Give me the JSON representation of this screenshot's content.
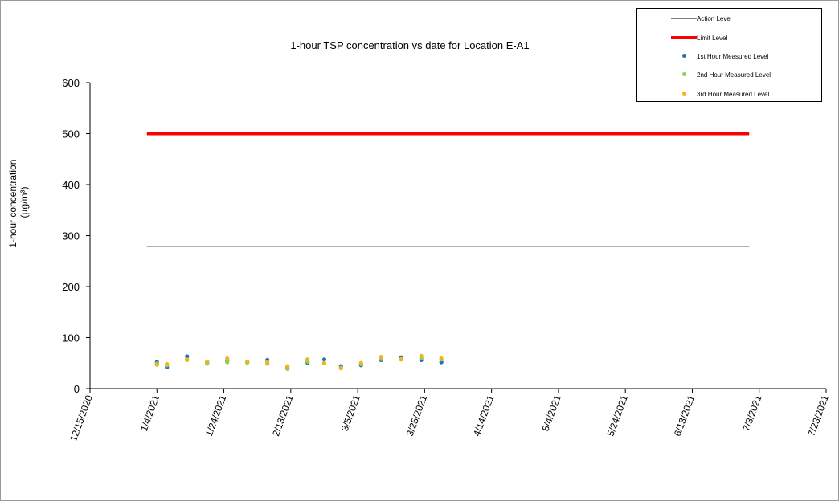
{
  "chart_data": {
    "type": "scatter",
    "title": "1-hour TSP concentration vs date for Location E-A1",
    "ylabel_line1": "1-hour concentration",
    "ylabel_line2": "(µg/m³)",
    "xlabel": "",
    "ylim": [
      0,
      600
    ],
    "yticks": [
      0,
      100,
      200,
      300,
      400,
      500,
      600
    ],
    "xlim": [
      "2020-12-15",
      "2021-07-23"
    ],
    "xticks": [
      "12/15/2020",
      "1/4/2021",
      "1/24/2021",
      "2/13/2021",
      "3/5/2021",
      "3/25/2021",
      "4/14/2021",
      "5/4/2021",
      "5/24/2021",
      "6/13/2021",
      "7/3/2021",
      "7/23/2021"
    ],
    "grid": false,
    "legend_position": "top-right",
    "reference_lines": [
      {
        "name": "Action Level",
        "value": 279,
        "x_start": "2021-01-01",
        "x_end": "2021-06-30",
        "color": "#808080"
      },
      {
        "name": "Limit Level",
        "value": 500,
        "x_start": "2021-01-01",
        "x_end": "2021-06-30",
        "color": "#ff0000"
      }
    ],
    "series": [
      {
        "name": "1st Hour Measured Level",
        "color": "#1f6fb4",
        "points": [
          {
            "x": "2021-01-04",
            "y": 52
          },
          {
            "x": "2021-01-07",
            "y": 42
          },
          {
            "x": "2021-01-13",
            "y": 63
          },
          {
            "x": "2021-01-19",
            "y": 51
          },
          {
            "x": "2021-01-25",
            "y": 55
          },
          {
            "x": "2021-01-31",
            "y": 52
          },
          {
            "x": "2021-02-06",
            "y": 56
          },
          {
            "x": "2021-02-12",
            "y": 41
          },
          {
            "x": "2021-02-18",
            "y": 51
          },
          {
            "x": "2021-02-23",
            "y": 57
          },
          {
            "x": "2021-02-28",
            "y": 44
          },
          {
            "x": "2021-03-06",
            "y": 46
          },
          {
            "x": "2021-03-12",
            "y": 56
          },
          {
            "x": "2021-03-18",
            "y": 61
          },
          {
            "x": "2021-03-24",
            "y": 56
          },
          {
            "x": "2021-03-30",
            "y": 52
          }
        ]
      },
      {
        "name": "2nd Hour Measured Level",
        "color": "#8ccf5a",
        "points": [
          {
            "x": "2021-01-04",
            "y": 49
          },
          {
            "x": "2021-01-07",
            "y": 46
          },
          {
            "x": "2021-01-13",
            "y": 57
          },
          {
            "x": "2021-01-19",
            "y": 49
          },
          {
            "x": "2021-01-25",
            "y": 52
          },
          {
            "x": "2021-01-31",
            "y": 51
          },
          {
            "x": "2021-02-06",
            "y": 49
          },
          {
            "x": "2021-02-12",
            "y": 39
          },
          {
            "x": "2021-02-18",
            "y": 53
          },
          {
            "x": "2021-02-23",
            "y": 50
          },
          {
            "x": "2021-02-28",
            "y": 41
          },
          {
            "x": "2021-03-06",
            "y": 48
          },
          {
            "x": "2021-03-12",
            "y": 58
          },
          {
            "x": "2021-03-18",
            "y": 57
          },
          {
            "x": "2021-03-24",
            "y": 60
          },
          {
            "x": "2021-03-30",
            "y": 57
          }
        ]
      },
      {
        "name": "3rd Hour Measured Level",
        "color": "#f6b21b",
        "points": [
          {
            "x": "2021-01-04",
            "y": 47
          },
          {
            "x": "2021-01-07",
            "y": 48
          },
          {
            "x": "2021-01-13",
            "y": 56
          },
          {
            "x": "2021-01-19",
            "y": 53
          },
          {
            "x": "2021-01-25",
            "y": 59
          },
          {
            "x": "2021-01-31",
            "y": 53
          },
          {
            "x": "2021-02-06",
            "y": 52
          },
          {
            "x": "2021-02-12",
            "y": 44
          },
          {
            "x": "2021-02-18",
            "y": 57
          },
          {
            "x": "2021-02-23",
            "y": 50
          },
          {
            "x": "2021-02-28",
            "y": 40
          },
          {
            "x": "2021-03-06",
            "y": 50
          },
          {
            "x": "2021-03-12",
            "y": 62
          },
          {
            "x": "2021-03-18",
            "y": 58
          },
          {
            "x": "2021-03-24",
            "y": 64
          },
          {
            "x": "2021-03-30",
            "y": 59
          }
        ]
      }
    ]
  }
}
